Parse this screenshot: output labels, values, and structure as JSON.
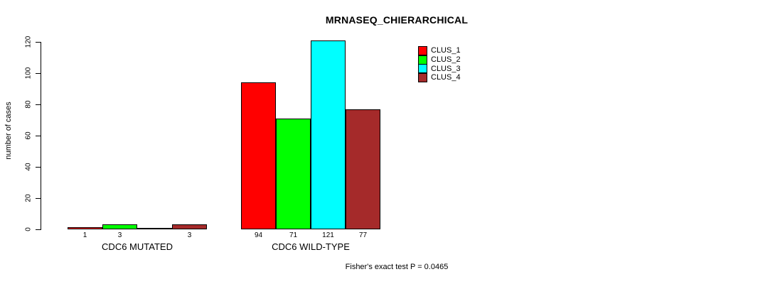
{
  "title": "MRNASEQ_CHIERARCHICAL",
  "chart_data": {
    "type": "bar",
    "title": "MRNASEQ_CHIERARCHICAL",
    "ylabel": "number of cases",
    "xlabel": "",
    "ylim": [
      0,
      120
    ],
    "yticks": [
      0,
      20,
      40,
      60,
      80,
      100,
      120
    ],
    "grid": false,
    "legend_position": "top-right",
    "categories": [
      "CDC6 MUTATED",
      "CDC6 WILD-TYPE"
    ],
    "series": [
      {
        "name": "CLUS_1",
        "color": "#ff0000",
        "values": [
          1,
          94
        ]
      },
      {
        "name": "CLUS_2",
        "color": "#00ff00",
        "values": [
          3,
          71
        ]
      },
      {
        "name": "CLUS_3",
        "color": "#00ffff",
        "values": [
          0,
          121
        ]
      },
      {
        "name": "CLUS_4",
        "color": "#a52a2a",
        "values": [
          3,
          77
        ]
      }
    ],
    "bar_value_labels": [
      [
        "1",
        "3",
        "",
        "3"
      ],
      [
        "94",
        "71",
        "121",
        "77"
      ]
    ],
    "annotation": "Fisher's exact test P = 0.0465",
    "bar_border_color": "#000000",
    "axis_color": "#000000",
    "background": "#ffffff"
  }
}
